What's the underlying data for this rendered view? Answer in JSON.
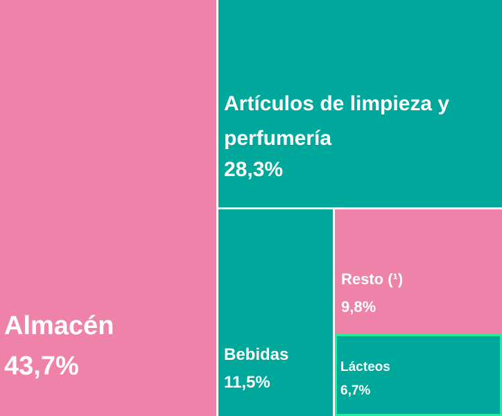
{
  "chart_data": {
    "type": "treemap",
    "categories": [
      "Almacén",
      "Artículos de limpieza y perfumería",
      "Bebidas",
      "Resto (¹)",
      "Lácteos"
    ],
    "values": [
      43.7,
      28.3,
      11.5,
      9.8,
      6.7
    ],
    "value_labels": [
      "43,7%",
      "28,3%",
      "11,5%",
      "9,8%",
      "6,7%"
    ],
    "colors": [
      "#EE82A8",
      "#00A89C",
      "#00A89C",
      "#EE82A8",
      "#00A89C"
    ],
    "highlight_color": "#1EF096",
    "highlighted": "Lácteos"
  }
}
